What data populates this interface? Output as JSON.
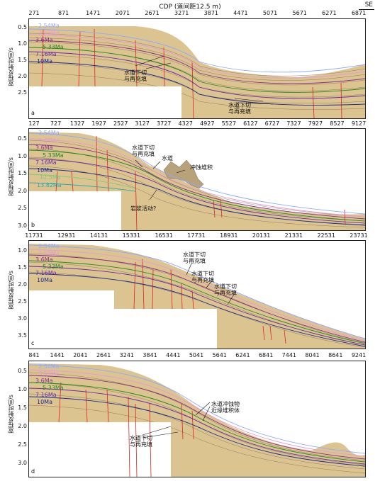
{
  "header": {
    "title": "CDP (道间距12.5 m)",
    "direction": "SE"
  },
  "y_axis_label": "双程反射时间/s",
  "panels": [
    {
      "id": "a",
      "label": "a",
      "cdp": [
        "271",
        "871",
        "1471",
        "2071",
        "2671",
        "3271",
        "3871",
        "4471",
        "5071",
        "5671",
        "6271",
        "6871"
      ],
      "yticks": [
        "0.5",
        "1.0",
        "1.5",
        "2.0",
        "2.5"
      ],
      "horizons": [
        {
          "name": "2.54Ma",
          "color": "#8fa9ff"
        },
        {
          "name": "3.59Ma",
          "color": "#e79ad5"
        },
        {
          "name": "3.6Ma",
          "color": "#8a2e8a"
        },
        {
          "name": "5.33Ma",
          "color": "#1f8a1f"
        },
        {
          "name": "7.16Ma",
          "color": "#6b2aa8"
        },
        {
          "name": "10Ma",
          "color": "#1a2a8c"
        }
      ],
      "annotations": [
        {
          "id": "a1",
          "lines": [
            "水道下切",
            "与再充填"
          ]
        },
        {
          "id": "a2",
          "lines": [
            "水道下切",
            "与再充填"
          ]
        }
      ]
    },
    {
      "id": "b",
      "label": "b",
      "cdp": [
        "127",
        "727",
        "1327",
        "1927",
        "2527",
        "3127",
        "3727",
        "4327",
        "4927",
        "5527",
        "6127",
        "6727",
        "7327",
        "7927",
        "8527",
        "9127"
      ],
      "yticks": [
        "0.5",
        "1.0",
        "1.5",
        "2.0",
        "2.5",
        "3.0"
      ],
      "horizons": [
        {
          "name": "2.54Ma",
          "color": "#8fa9ff"
        },
        {
          "name": "3.59Ma",
          "color": "#e79ad5"
        },
        {
          "name": "3.6Ma",
          "color": "#8a2e8a"
        },
        {
          "name": "5.33Ma",
          "color": "#1f8a1f"
        },
        {
          "name": "7.16Ma",
          "color": "#6b2aa8"
        },
        {
          "name": "10Ma",
          "color": "#1a2a8c"
        },
        {
          "name": "12.5Ma",
          "color": "#7ec97e"
        },
        {
          "name": "13.82Ma",
          "color": "#2aa8a8"
        }
      ],
      "annotations": [
        {
          "id": "b1",
          "lines": [
            "水道下切",
            "与再充填"
          ]
        },
        {
          "id": "b2",
          "lines": [
            "水道"
          ]
        },
        {
          "id": "b3",
          "lines": [
            "冲蚀堆积"
          ]
        },
        {
          "id": "b4",
          "lines": [
            "岩浆活动?"
          ]
        }
      ]
    },
    {
      "id": "c",
      "label": "c",
      "cdp": [
        "11731",
        "12931",
        "14131",
        "15331",
        "16531",
        "17731",
        "18931",
        "20131",
        "21331",
        "22531",
        "23731"
      ],
      "yticks": [
        "1.0",
        "1.5",
        "2.0",
        "2.5",
        "3.0",
        "3.5"
      ],
      "horizons": [
        {
          "name": "2.54Ma",
          "color": "#8fa9ff"
        },
        {
          "name": "3.59Ma",
          "color": "#e79ad5"
        },
        {
          "name": "3.6Ma",
          "color": "#8a2e8a"
        },
        {
          "name": "5.33Ma",
          "color": "#1f8a1f"
        },
        {
          "name": "7.16Ma",
          "color": "#6b2aa8"
        },
        {
          "name": "10Ma",
          "color": "#1a2a8c"
        }
      ],
      "annotations": [
        {
          "id": "c1",
          "lines": [
            "水道下切",
            "与再充填"
          ]
        },
        {
          "id": "c2",
          "lines": [
            "水道下切",
            "与再充填"
          ]
        },
        {
          "id": "c3",
          "lines": [
            "水道下切",
            "与再充填"
          ]
        }
      ]
    },
    {
      "id": "d",
      "label": "d",
      "cdp": [
        "841",
        "1441",
        "2041",
        "2641",
        "3241",
        "3841",
        "4441",
        "5041",
        "5641",
        "6241",
        "6841",
        "7441",
        "8041",
        "8641",
        "9241"
      ],
      "yticks": [
        "0.5",
        "1.0",
        "1.5",
        "2.0",
        "2.5",
        "3.0"
      ],
      "horizons": [
        {
          "name": "2.54Ma",
          "color": "#8fa9ff"
        },
        {
          "name": "3.59Ma",
          "color": "#e79ad5"
        },
        {
          "name": "3.6Ma",
          "color": "#8a2e8a"
        },
        {
          "name": "5.33Ma",
          "color": "#1f8a1f"
        },
        {
          "name": "7.16Ma",
          "color": "#6b2aa8"
        },
        {
          "name": "10Ma",
          "color": "#1a2a8c"
        }
      ],
      "annotations": [
        {
          "id": "d1",
          "lines": [
            "水道冲蚀物",
            "近缘堆积体"
          ]
        },
        {
          "id": "d2",
          "lines": [
            "水道下切",
            "与再充填"
          ]
        }
      ]
    }
  ]
}
